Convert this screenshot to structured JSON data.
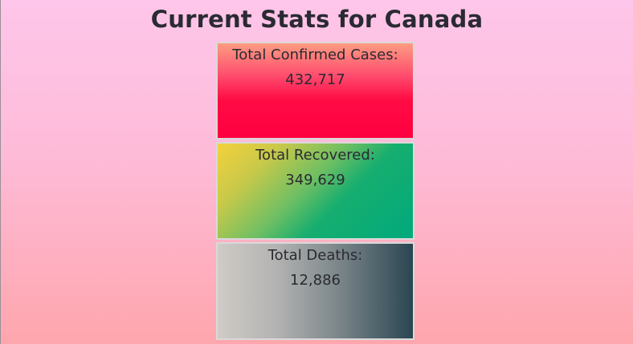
{
  "header": {
    "title": "Current Stats for Canada"
  },
  "stats": {
    "confirmed": {
      "label": "Total Confirmed Cases:",
      "value": "432,717"
    },
    "recovered": {
      "label": "Total Recovered:",
      "value": "349,629"
    },
    "deaths": {
      "label": "Total Deaths:",
      "value": "12,886"
    }
  },
  "colors": {
    "page_top": "#fec6ea",
    "page_bottom": "#fea6ad",
    "confirmed_top": "#fd9c82",
    "confirmed_bottom": "#ff0040",
    "recovered_start": "#f4d13c",
    "recovered_end": "#00a97b",
    "deaths_start": "#cfcbc6",
    "deaths_end": "#2a4652",
    "text": "#2a2a32"
  }
}
